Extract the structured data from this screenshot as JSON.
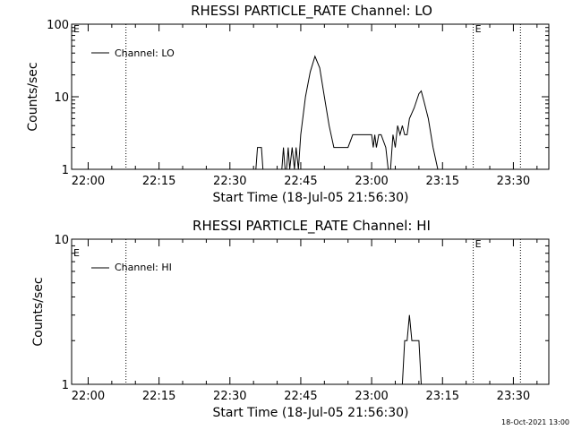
{
  "footer": {
    "timestamp": "18-Oct-2021 13:00"
  },
  "chart_data": [
    {
      "type": "line",
      "title": "RHESSI PARTICLE_RATE Channel: LO",
      "xlabel": "Start Time (18-Jul-05 21:56:30)",
      "ylabel": "Counts/sec",
      "y_scale": "log",
      "ylim": [
        1,
        100
      ],
      "xlim": [
        "21:56:30",
        "23:37:30"
      ],
      "yticks": [
        "1",
        "10",
        "100"
      ],
      "xticks": [
        "22:00",
        "22:15",
        "22:30",
        "22:45",
        "23:00",
        "23:15",
        "23:30"
      ],
      "legend": {
        "position": "top-left",
        "label": "Channel: LO"
      },
      "markers": [
        {
          "time": "22:08:00",
          "label": ""
        },
        {
          "time": "23:21:30",
          "label": "E"
        },
        {
          "time": "23:31:30",
          "label": ""
        }
      ],
      "edge_label": "E",
      "series": [
        {
          "name": "Channel: LO",
          "points": [
            [
              "22:35:30",
              1
            ],
            [
              "22:35:50",
              2
            ],
            [
              "22:36:40",
              2
            ],
            [
              "22:37:00",
              1
            ],
            [
              "22:41:00",
              1
            ],
            [
              "22:41:20",
              2
            ],
            [
              "22:41:40",
              1
            ],
            [
              "22:42:00",
              1
            ],
            [
              "22:42:20",
              2
            ],
            [
              "22:42:40",
              1
            ],
            [
              "22:43:10",
              2
            ],
            [
              "22:43:40",
              1
            ],
            [
              "22:44:00",
              2
            ],
            [
              "22:44:30",
              1
            ],
            [
              "22:45:00",
              3
            ],
            [
              "22:46:00",
              10
            ],
            [
              "22:47:00",
              22
            ],
            [
              "22:48:00",
              36
            ],
            [
              "22:49:00",
              25
            ],
            [
              "22:50:00",
              10
            ],
            [
              "22:51:00",
              4
            ],
            [
              "22:52:00",
              2
            ],
            [
              "22:53:00",
              2
            ],
            [
              "22:54:00",
              2
            ],
            [
              "22:55:00",
              2
            ],
            [
              "22:56:00",
              3
            ],
            [
              "22:57:00",
              3
            ],
            [
              "22:58:00",
              3
            ],
            [
              "22:59:00",
              3
            ],
            [
              "23:00:00",
              3
            ],
            [
              "23:00:20",
              2
            ],
            [
              "23:00:40",
              3
            ],
            [
              "23:01:00",
              2
            ],
            [
              "23:01:30",
              3
            ],
            [
              "23:02:00",
              3
            ],
            [
              "23:03:00",
              2
            ],
            [
              "23:03:30",
              1
            ],
            [
              "23:04:00",
              1
            ],
            [
              "23:04:30",
              3
            ],
            [
              "23:05:00",
              2
            ],
            [
              "23:05:30",
              4
            ],
            [
              "23:06:00",
              3
            ],
            [
              "23:06:30",
              4
            ],
            [
              "23:07:00",
              3
            ],
            [
              "23:07:30",
              3
            ],
            [
              "23:08:00",
              5
            ],
            [
              "23:09:00",
              7
            ],
            [
              "23:10:00",
              11
            ],
            [
              "23:10:30",
              12
            ],
            [
              "23:11:00",
              9
            ],
            [
              "23:12:00",
              5
            ],
            [
              "23:13:00",
              2
            ],
            [
              "23:14:00",
              1
            ]
          ]
        }
      ]
    },
    {
      "type": "line",
      "title": "RHESSI PARTICLE_RATE Channel: HI",
      "xlabel": "Start Time (18-Jul-05 21:56:30)",
      "ylabel": "Counts/sec",
      "y_scale": "log",
      "ylim": [
        1,
        10
      ],
      "xlim": [
        "21:56:30",
        "23:37:30"
      ],
      "yticks": [
        "1",
        "10"
      ],
      "xticks": [
        "22:00",
        "22:15",
        "22:30",
        "22:45",
        "23:00",
        "23:15",
        "23:30"
      ],
      "legend": {
        "position": "top-left",
        "label": "Channel: HI"
      },
      "markers": [
        {
          "time": "22:08:00",
          "label": ""
        },
        {
          "time": "23:21:30",
          "label": "E"
        },
        {
          "time": "23:31:30",
          "label": ""
        }
      ],
      "edge_label": "E",
      "series": [
        {
          "name": "Channel: HI",
          "points": [
            [
              "23:06:30",
              1
            ],
            [
              "23:07:00",
              2
            ],
            [
              "23:07:30",
              2
            ],
            [
              "23:08:00",
              3
            ],
            [
              "23:08:30",
              2
            ],
            [
              "23:09:00",
              2
            ],
            [
              "23:09:30",
              2
            ],
            [
              "23:10:00",
              2
            ],
            [
              "23:10:30",
              1
            ]
          ]
        }
      ]
    }
  ]
}
